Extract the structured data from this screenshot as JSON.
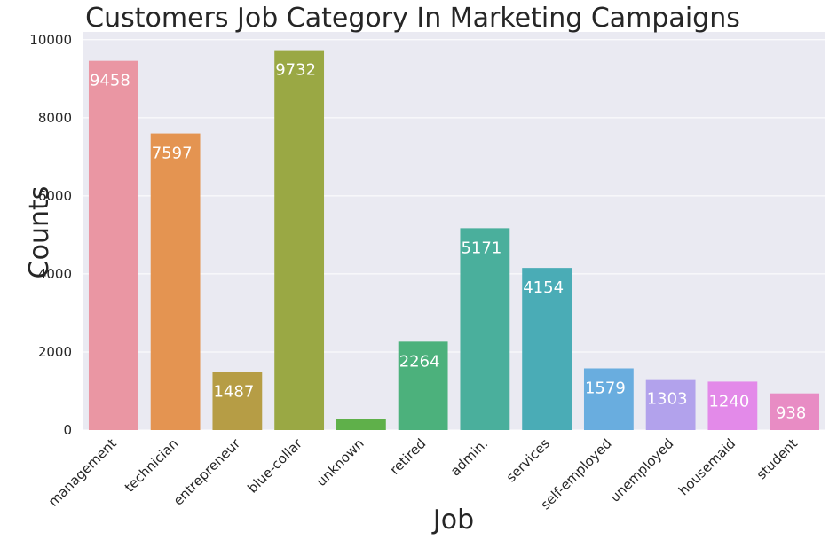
{
  "chart_data": {
    "type": "bar",
    "title": "Customers Job Category In Marketing Campaigns",
    "xlabel": "Job",
    "ylabel": "Counts",
    "categories": [
      "management",
      "technician",
      "entrepreneur",
      "blue-collar",
      "unknown",
      "retired",
      "admin.",
      "services",
      "self-employed",
      "unemployed",
      "housemaid",
      "student"
    ],
    "values": [
      9458,
      7597,
      1487,
      9732,
      288,
      2264,
      5171,
      4154,
      1579,
      1303,
      1240,
      938
    ],
    "data_labels": [
      "9458",
      "7597",
      "1487",
      "9732",
      "",
      "2264",
      "5171",
      "4154",
      "1579",
      "1303",
      "1240",
      "938"
    ],
    "colors": [
      "#ea96a3",
      "#e49451",
      "#b69d45",
      "#9aa844",
      "#5fb04a",
      "#4cb17c",
      "#4aaf9c",
      "#4aacb6",
      "#69addf",
      "#b2a2ec",
      "#e38ae9",
      "#e88cc4"
    ],
    "yticks": [
      0,
      2000,
      4000,
      6000,
      8000,
      10000
    ],
    "ylim": [
      0,
      10200
    ],
    "grid": true,
    "background": "#eaeaf2"
  }
}
